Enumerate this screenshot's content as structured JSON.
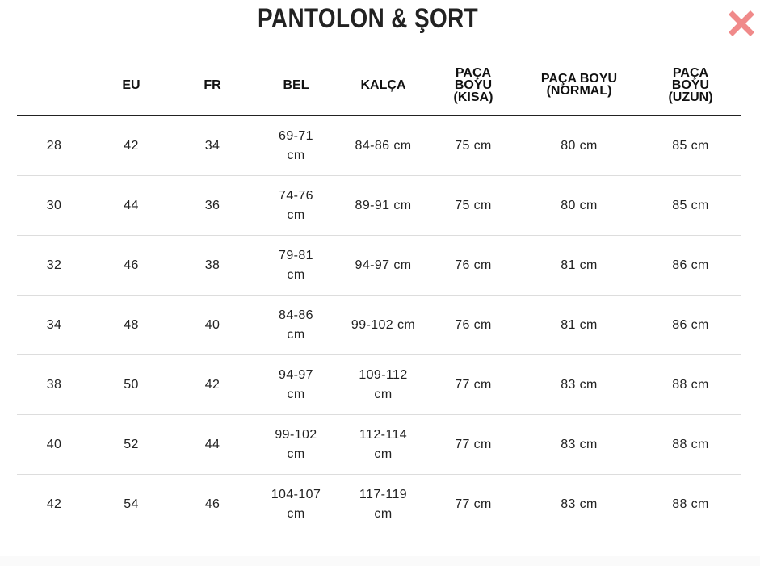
{
  "title": "PANTOLON & ŞORT",
  "close_icon": "close-x-icon",
  "colors": {
    "close": "#f08a8a",
    "header_rule": "#222222",
    "row_rule": "#dddddd"
  },
  "columns": [
    "",
    "EU",
    "FR",
    "BEL",
    "KALÇA",
    "PAÇA BOYU (KISA)",
    "PAÇA BOYU (NORMAL)",
    "PAÇA BOYU (UZUN)"
  ],
  "rows": [
    [
      "28",
      "42",
      "34",
      "69-71 cm",
      "84-86 cm",
      "75 cm",
      "80 cm",
      "85 cm"
    ],
    [
      "30",
      "44",
      "36",
      "74-76 cm",
      "89-91 cm",
      "75 cm",
      "80 cm",
      "85 cm"
    ],
    [
      "32",
      "46",
      "38",
      "79-81 cm",
      "94-97 cm",
      "76 cm",
      "81 cm",
      "86 cm"
    ],
    [
      "34",
      "48",
      "40",
      "84-86 cm",
      "99-102 cm",
      "76 cm",
      "81 cm",
      "86 cm"
    ],
    [
      "38",
      "50",
      "42",
      "94-97 cm",
      "109-112 cm",
      "77 cm",
      "83 cm",
      "88 cm"
    ],
    [
      "40",
      "52",
      "44",
      "99-102 cm",
      "112-114 cm",
      "77 cm",
      "83 cm",
      "88 cm"
    ],
    [
      "42",
      "54",
      "46",
      "104-107 cm",
      "117-119 cm",
      "77 cm",
      "83 cm",
      "88 cm"
    ]
  ]
}
